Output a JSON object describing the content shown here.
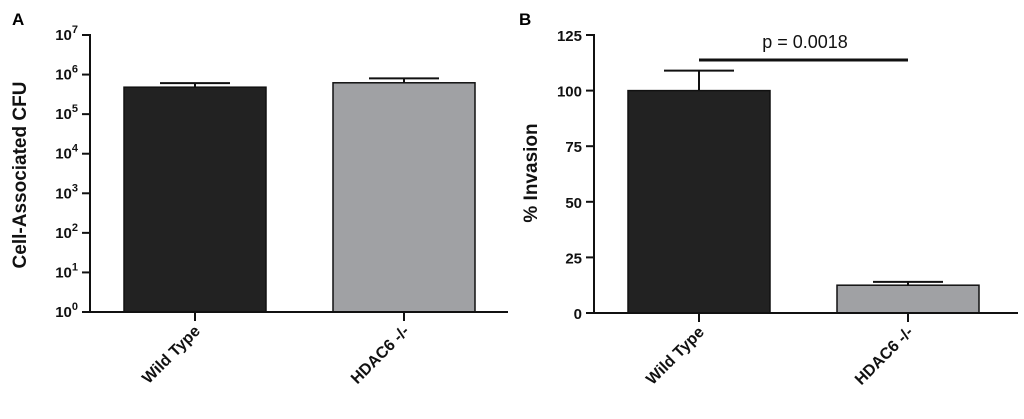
{
  "chart_data": [
    {
      "panel": "A",
      "type": "bar",
      "ylabel": "Cell-Associated CFU",
      "yscale": "log",
      "ylim": [
        1,
        10000000
      ],
      "ytick_exponents": [
        "0",
        "1",
        "2",
        "3",
        "4",
        "5",
        "6",
        "7"
      ],
      "ytick_base": "10",
      "categories": [
        "Wild Type",
        "HDAC6 -/-"
      ],
      "values": [
        480000,
        620000
      ],
      "errors": [
        130000,
        180000
      ],
      "colors": [
        "#222222",
        "#a0a1a4"
      ]
    },
    {
      "panel": "B",
      "type": "bar",
      "ylabel": "% Invasion",
      "yscale": "linear",
      "ylim": [
        0,
        125
      ],
      "yticks": [
        "0",
        "25",
        "50",
        "75",
        "100",
        "125"
      ],
      "categories": [
        "Wild Type",
        "HDAC6 -/-"
      ],
      "values": [
        100,
        12.5
      ],
      "errors": [
        9,
        1.5
      ],
      "colors": [
        "#222222",
        "#a0a1a4"
      ],
      "annotation": "p = 0.0018"
    }
  ]
}
